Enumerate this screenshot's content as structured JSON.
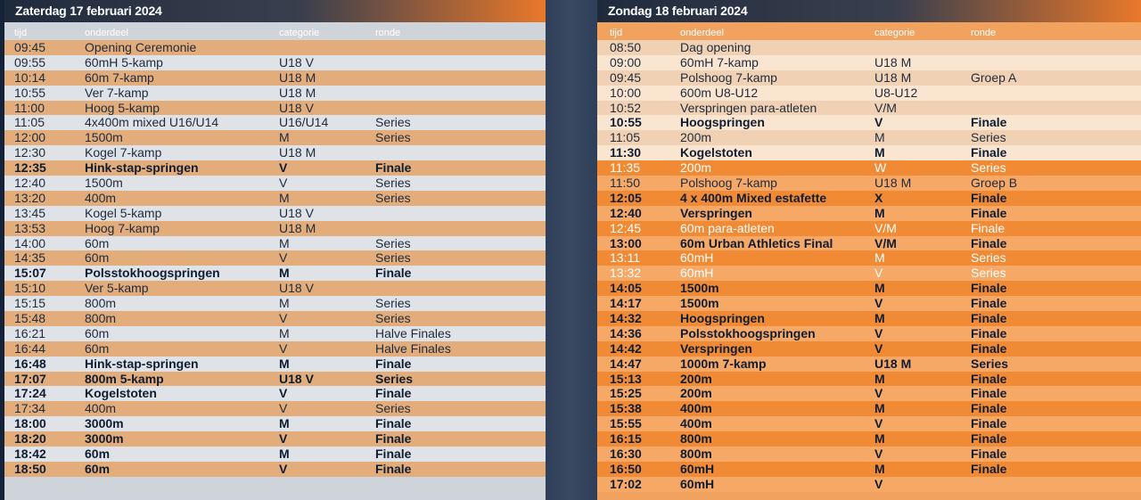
{
  "columns": {
    "time": "tijd",
    "event": "onderdeel",
    "category": "categorie",
    "round": "ronde"
  },
  "saturday": {
    "title": "Zaterdag 17 februari 2024",
    "rows": [
      {
        "t": "09:45",
        "e": "Opening Ceremonie",
        "c": "",
        "r": "",
        "bold": false
      },
      {
        "t": "09:55",
        "e": "60mH 5-kamp",
        "c": "U18 V",
        "r": "",
        "bold": false
      },
      {
        "t": "10:14",
        "e": "60m 7-kamp",
        "c": "U18 M",
        "r": "",
        "bold": false
      },
      {
        "t": "10:55",
        "e": "Ver 7-kamp",
        "c": "U18 M",
        "r": "",
        "bold": false
      },
      {
        "t": "11:00",
        "e": "Hoog 5-kamp",
        "c": "U18 V",
        "r": "",
        "bold": false
      },
      {
        "t": "11:05",
        "e": "4x400m mixed U16/U14",
        "c": "U16/U14",
        "r": "Series",
        "bold": false
      },
      {
        "t": "12:00",
        "e": "1500m",
        "c": "M",
        "r": "Series",
        "bold": false
      },
      {
        "t": "12:30",
        "e": "Kogel 7-kamp",
        "c": "U18 M",
        "r": "",
        "bold": false
      },
      {
        "t": "12:35",
        "e": "Hink-stap-springen",
        "c": "V",
        "r": "Finale",
        "bold": true
      },
      {
        "t": "12:40",
        "e": "1500m",
        "c": "V",
        "r": "Series",
        "bold": false
      },
      {
        "t": "13:20",
        "e": "400m",
        "c": "M",
        "r": "Series",
        "bold": false
      },
      {
        "t": "13:45",
        "e": "Kogel 5-kamp",
        "c": "U18 V",
        "r": "",
        "bold": false
      },
      {
        "t": "13:53",
        "e": "Hoog 7-kamp",
        "c": "U18 M",
        "r": "",
        "bold": false
      },
      {
        "t": "14:00",
        "e": "60m",
        "c": "M",
        "r": "Series",
        "bold": false
      },
      {
        "t": "14:35",
        "e": "60m",
        "c": "V",
        "r": "Series",
        "bold": false
      },
      {
        "t": "15:07",
        "e": "Polsstokhoogspringen",
        "c": "M",
        "r": "Finale",
        "bold": true
      },
      {
        "t": "15:10",
        "e": "Ver 5-kamp",
        "c": "U18 V",
        "r": "",
        "bold": false
      },
      {
        "t": "15:15",
        "e": "800m",
        "c": "M",
        "r": "Series",
        "bold": false
      },
      {
        "t": "15:48",
        "e": "800m",
        "c": "V",
        "r": "Series",
        "bold": false
      },
      {
        "t": "16:21",
        "e": "60m",
        "c": "M",
        "r": "Halve Finales",
        "bold": false
      },
      {
        "t": "16:44",
        "e": "60m",
        "c": "V",
        "r": "Halve Finales",
        "bold": false
      },
      {
        "t": "16:48",
        "e": "Hink-stap-springen",
        "c": "M",
        "r": "Finale",
        "bold": true
      },
      {
        "t": "17:07",
        "e": "800m 5-kamp",
        "c": "U18 V",
        "r": "Series",
        "bold": true
      },
      {
        "t": "17:24",
        "e": "Kogelstoten",
        "c": "V",
        "r": "Finale",
        "bold": true
      },
      {
        "t": "17:34",
        "e": "400m",
        "c": "V",
        "r": "Series",
        "bold": false
      },
      {
        "t": "18:00",
        "e": "3000m",
        "c": "M",
        "r": "Finale",
        "bold": true
      },
      {
        "t": "18:20",
        "e": "3000m",
        "c": "V",
        "r": "Finale",
        "bold": true
      },
      {
        "t": "18:42",
        "e": "60m",
        "c": "M",
        "r": "Finale",
        "bold": true
      },
      {
        "t": "18:50",
        "e": "60m",
        "c": "V",
        "r": "Finale",
        "bold": true
      }
    ]
  },
  "sunday": {
    "title": "Zondag 18 februari 2024",
    "rows": [
      {
        "t": "08:50",
        "e": "Dag opening",
        "c": "",
        "r": "",
        "style": "pale-b",
        "text": "dark"
      },
      {
        "t": "09:00",
        "e": "60mH 7-kamp",
        "c": "U18 M",
        "r": "",
        "style": "pale-a",
        "text": "dark"
      },
      {
        "t": "09:45",
        "e": "Polshoog 7-kamp",
        "c": "U18 M",
        "r": "Groep A",
        "style": "pale-b",
        "text": "dark"
      },
      {
        "t": "10:00",
        "e": "600m U8-U12",
        "c": "U8-U12",
        "r": "",
        "style": "pale-a",
        "text": "dark"
      },
      {
        "t": "10:52",
        "e": "Verspringen para-atleten",
        "c": "V/M",
        "r": "",
        "style": "pale-b",
        "text": "dark"
      },
      {
        "t": "10:55",
        "e": "Hoogspringen",
        "c": "V",
        "r": "Finale",
        "style": "pale-a",
        "text": "bold"
      },
      {
        "t": "11:05",
        "e": "200m",
        "c": "M",
        "r": "Series",
        "style": "pale-b",
        "text": "dark"
      },
      {
        "t": "11:30",
        "e": "Kogelstoten",
        "c": "M",
        "r": "Finale",
        "style": "pale-a",
        "text": "bold"
      },
      {
        "t": "11:35",
        "e": "200m",
        "c": "W",
        "r": "Series",
        "style": "o1",
        "text": "light"
      },
      {
        "t": "11:50",
        "e": "Polshoog 7-kamp",
        "c": "U18 M",
        "r": "Groep B",
        "style": "o2",
        "text": "dark"
      },
      {
        "t": "12:05",
        "e": "4 x 400m Mixed estafette",
        "c": "X",
        "r": "Finale",
        "style": "o1",
        "text": "bold"
      },
      {
        "t": "12:40",
        "e": "Verspringen",
        "c": "M",
        "r": "Finale",
        "style": "o2",
        "text": "bold"
      },
      {
        "t": "12:45",
        "e": "60m para-atleten",
        "c": "V/M",
        "r": "Finale",
        "style": "o1",
        "text": "light"
      },
      {
        "t": "13:00",
        "e": "60m Urban Athletics Final",
        "c": "V/M",
        "r": "Finale",
        "style": "o2",
        "text": "bold"
      },
      {
        "t": "13:11",
        "e": "60mH",
        "c": "M",
        "r": "Series",
        "style": "o1",
        "text": "light"
      },
      {
        "t": "13:32",
        "e": "60mH",
        "c": "V",
        "r": "Series",
        "style": "o2",
        "text": "light"
      },
      {
        "t": "14:05",
        "e": "1500m",
        "c": "M",
        "r": "Finale",
        "style": "o1",
        "text": "bold"
      },
      {
        "t": "14:17",
        "e": "1500m",
        "c": "V",
        "r": "Finale",
        "style": "o2",
        "text": "bold"
      },
      {
        "t": "14:32",
        "e": "Hoogspringen",
        "c": "M",
        "r": "Finale",
        "style": "o1",
        "text": "bold"
      },
      {
        "t": "14:36",
        "e": "Polsstokhoogspringen",
        "c": "V",
        "r": "Finale",
        "style": "o2",
        "text": "bold"
      },
      {
        "t": "14:42",
        "e": "Verspringen",
        "c": "V",
        "r": "Finale",
        "style": "o1",
        "text": "bold"
      },
      {
        "t": "14:47",
        "e": "1000m 7-kamp",
        "c": "U18 M",
        "r": "Series",
        "style": "o2",
        "text": "bold"
      },
      {
        "t": "15:13",
        "e": "200m",
        "c": "M",
        "r": "Finale",
        "style": "o1",
        "text": "bold"
      },
      {
        "t": "15:25",
        "e": "200m",
        "c": "V",
        "r": "Finale",
        "style": "o2",
        "text": "bold"
      },
      {
        "t": "15:38",
        "e": "400m",
        "c": "M",
        "r": "Finale",
        "style": "o1",
        "text": "bold"
      },
      {
        "t": "15:55",
        "e": "400m",
        "c": "V",
        "r": "Finale",
        "style": "o2",
        "text": "bold"
      },
      {
        "t": "16:15",
        "e": "800m",
        "c": "M",
        "r": "Finale",
        "style": "o1",
        "text": "bold"
      },
      {
        "t": "16:30",
        "e": "800m",
        "c": "V",
        "r": "Finale",
        "style": "o2",
        "text": "bold"
      },
      {
        "t": "16:50",
        "e": "60mH",
        "c": "M",
        "r": "Finale",
        "style": "o1",
        "text": "bold"
      },
      {
        "t": "17:02",
        "e": "60mH",
        "c": "V",
        "r": "",
        "style": "o2",
        "text": "bold"
      }
    ]
  }
}
